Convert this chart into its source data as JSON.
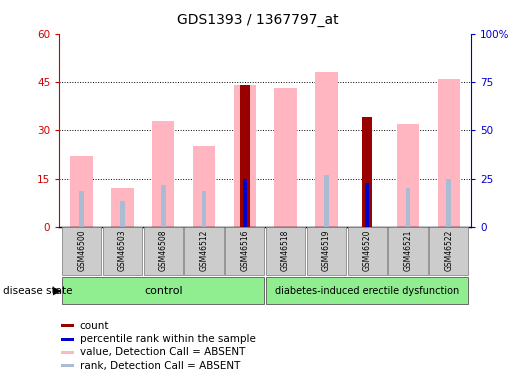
{
  "title": "GDS1393 / 1367797_at",
  "samples": [
    "GSM46500",
    "GSM46503",
    "GSM46508",
    "GSM46512",
    "GSM46516",
    "GSM46518",
    "GSM46519",
    "GSM46520",
    "GSM46521",
    "GSM46522"
  ],
  "value_absent": [
    22,
    12,
    33,
    25,
    44,
    43,
    48,
    null,
    32,
    46
  ],
  "rank_absent": [
    11,
    8,
    13,
    11,
    null,
    null,
    16,
    null,
    12,
    15
  ],
  "count_red": [
    null,
    null,
    null,
    null,
    44,
    null,
    null,
    34,
    null,
    null
  ],
  "percentile_blue": [
    null,
    null,
    null,
    null,
    15,
    null,
    null,
    13.5,
    null,
    null
  ],
  "ylim_left": [
    0,
    60
  ],
  "ylim_right": [
    0,
    100
  ],
  "yticks_left": [
    0,
    15,
    30,
    45,
    60
  ],
  "yticks_right": [
    0,
    25,
    50,
    75,
    100
  ],
  "ytick_labels_right": [
    "0",
    "25",
    "50",
    "75",
    "100%"
  ],
  "color_value_absent": "#FFB6C1",
  "color_rank_absent": "#AABBD4",
  "color_count": "#990000",
  "color_percentile": "#0000CC",
  "color_axis_left": "#CC0000",
  "color_axis_right": "#0000CC",
  "group1_label": "control",
  "group2_label": "diabetes-induced erectile dysfunction",
  "group_label": "disease state"
}
